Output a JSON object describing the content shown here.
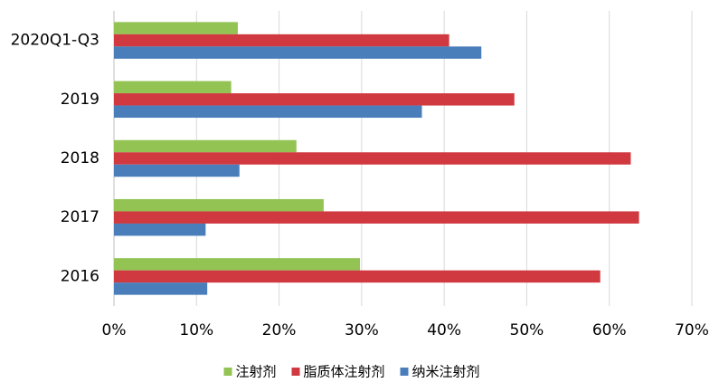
{
  "chart_data": {
    "type": "bar",
    "orientation": "horizontal",
    "categories": [
      "2020Q1-Q3",
      "2019",
      "2018",
      "2017",
      "2016"
    ],
    "series": [
      {
        "name": "注射剂",
        "color": "#92c353",
        "values": [
          15.0,
          14.2,
          22.1,
          25.4,
          29.8
        ]
      },
      {
        "name": "脂质体注射剂",
        "color": "#d0393f",
        "values": [
          40.6,
          48.5,
          62.6,
          63.6,
          58.9
        ]
      },
      {
        "name": "纳米注射剂",
        "color": "#4a7ebb",
        "values": [
          44.5,
          37.3,
          15.2,
          11.1,
          11.3
        ]
      }
    ],
    "xlim": [
      0,
      70
    ],
    "xticks": [
      {
        "value": 0,
        "label": "0%"
      },
      {
        "value": 10,
        "label": "10%"
      },
      {
        "value": 20,
        "label": "20%"
      },
      {
        "value": 30,
        "label": "30%"
      },
      {
        "value": 40,
        "label": "40%"
      },
      {
        "value": 50,
        "label": "50%"
      },
      {
        "value": 60,
        "label": "60%"
      },
      {
        "value": 70,
        "label": "70%"
      }
    ],
    "grid": true,
    "legend": "bottom"
  }
}
